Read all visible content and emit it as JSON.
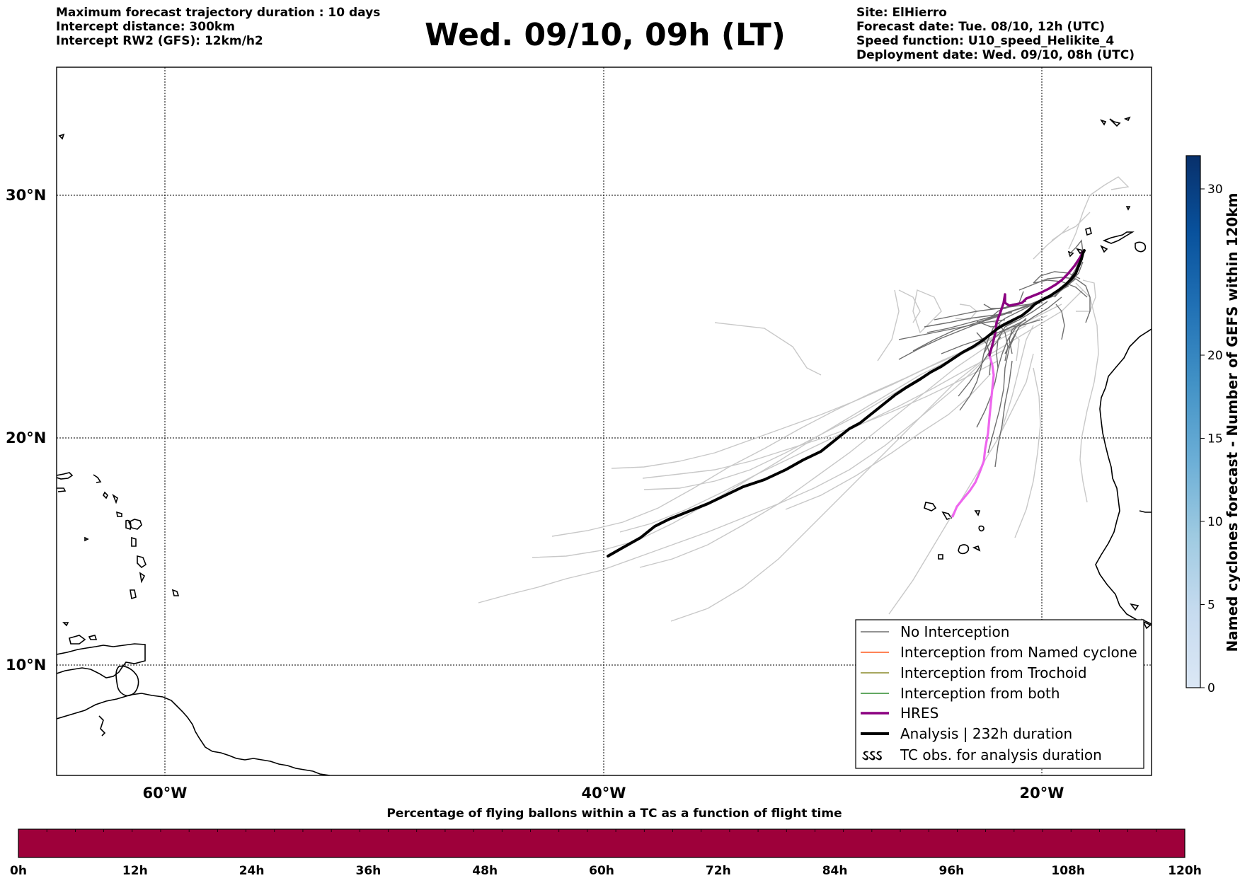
{
  "header": {
    "left_lines": [
      "Maximum forecast trajectory duration : 10 days",
      "Intercept distance: 300km",
      "Intercept RW2 (GFS):  12km/h2"
    ],
    "title": "Wed. 09/10, 09h (LT)",
    "right_lines": [
      "Site: ElHierro",
      "Forecast date: Tue. 08/10, 12h (UTC)",
      "Speed function: U10_speed_Helikite_4",
      "Deployment date: Wed. 09/10, 08h (UTC)"
    ]
  },
  "map": {
    "lat_labels": [
      "30°N",
      "20°N",
      "10°N"
    ],
    "lon_labels": [
      "60°W",
      "40°W",
      "20°W"
    ],
    "colors": {
      "no_interception": "#6e6e6e",
      "named_cyclone": "#ff5a1e",
      "trochoid": "#8a8a2a",
      "both": "#2e8b2e",
      "hres": "#8b0080",
      "hres_end": "#ee66ee",
      "analysis": "#000000",
      "faint_members": "#c8c8c8"
    }
  },
  "legend": {
    "items": [
      {
        "label": "No Interception",
        "symbol": "thin-grey-line"
      },
      {
        "label": "Interception from Named cyclone",
        "symbol": "thin-orange-line"
      },
      {
        "label": "Interception from Trochoid",
        "symbol": "thin-olive-line"
      },
      {
        "label": "Interception from both",
        "symbol": "thin-green-line"
      },
      {
        "label": "HRES",
        "symbol": "thick-purple-line"
      },
      {
        "label": "Analysis | 232h duration",
        "symbol": "thick-black-line"
      },
      {
        "label": "TC obs. for analysis duration",
        "symbol": "cyclone-glyphs",
        "glyphs": "ઽઽઽ"
      }
    ]
  },
  "colorbar": {
    "title": "Named cyclones forecast - Number of GEFS within 120km",
    "ticks": [
      "0",
      "5",
      "10",
      "15",
      "20",
      "30"
    ],
    "max": 32,
    "colors": [
      "#dbe7f5",
      "#c6dbef",
      "#9ecae1",
      "#6baed6",
      "#4292c6",
      "#2171b5",
      "#08519c",
      "#08306b"
    ]
  },
  "time_bar": {
    "title": "Percentage of flying ballons within a TC as a function of flight time",
    "ticks": [
      "0h",
      "12h",
      "24h",
      "36h",
      "48h",
      "60h",
      "72h",
      "84h",
      "96h",
      "108h",
      "120h"
    ],
    "fill_color": "#9e003a",
    "percent_values": [
      0,
      0,
      0,
      0,
      0,
      0,
      0,
      0,
      0,
      0,
      0,
      0,
      0,
      0,
      0,
      0,
      0,
      0,
      0,
      0,
      0,
      0,
      0,
      0,
      0,
      0,
      0,
      0,
      0,
      0,
      0,
      0,
      0,
      0,
      0,
      0,
      0,
      0,
      0,
      0,
      0
    ]
  }
}
